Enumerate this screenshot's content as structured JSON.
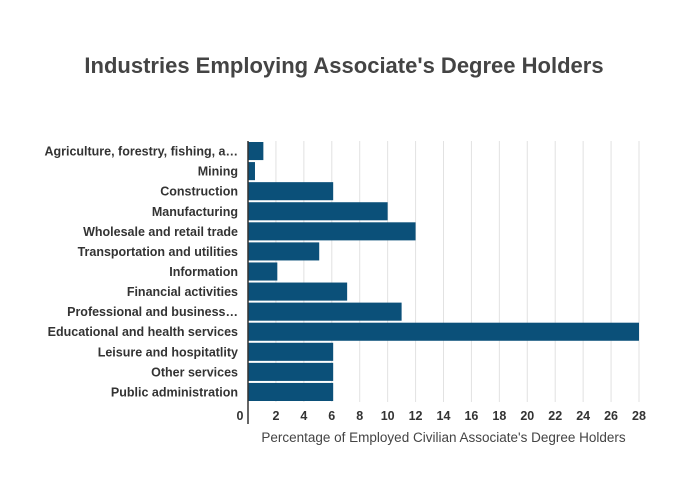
{
  "chart_data": {
    "type": "bar",
    "orientation": "horizontal",
    "title": "Industries Employing Associate's Degree Holders",
    "xlabel": "Percentage of Employed Civilian Associate's Degree Holders",
    "ylabel": "",
    "xlim": [
      0,
      28
    ],
    "xticks": [
      0,
      2,
      4,
      6,
      8,
      10,
      12,
      14,
      16,
      18,
      20,
      22,
      24,
      26,
      28
    ],
    "grid": true,
    "bar_color": "#0b5079",
    "categories": [
      "Agriculture, forestry, fishing, a…",
      "Mining",
      "Construction",
      "Manufacturing",
      "Wholesale and retail trade",
      "Transportation and utilities",
      "Information",
      "Financial activities",
      "Professional and business…",
      "Educational and health services",
      "Leisure and hospitatlity",
      "Other services",
      "Public administration"
    ],
    "values": [
      1.1,
      0.5,
      6.1,
      10.0,
      12.0,
      5.1,
      2.1,
      7.1,
      11.0,
      28.0,
      6.1,
      6.1,
      6.1
    ]
  }
}
